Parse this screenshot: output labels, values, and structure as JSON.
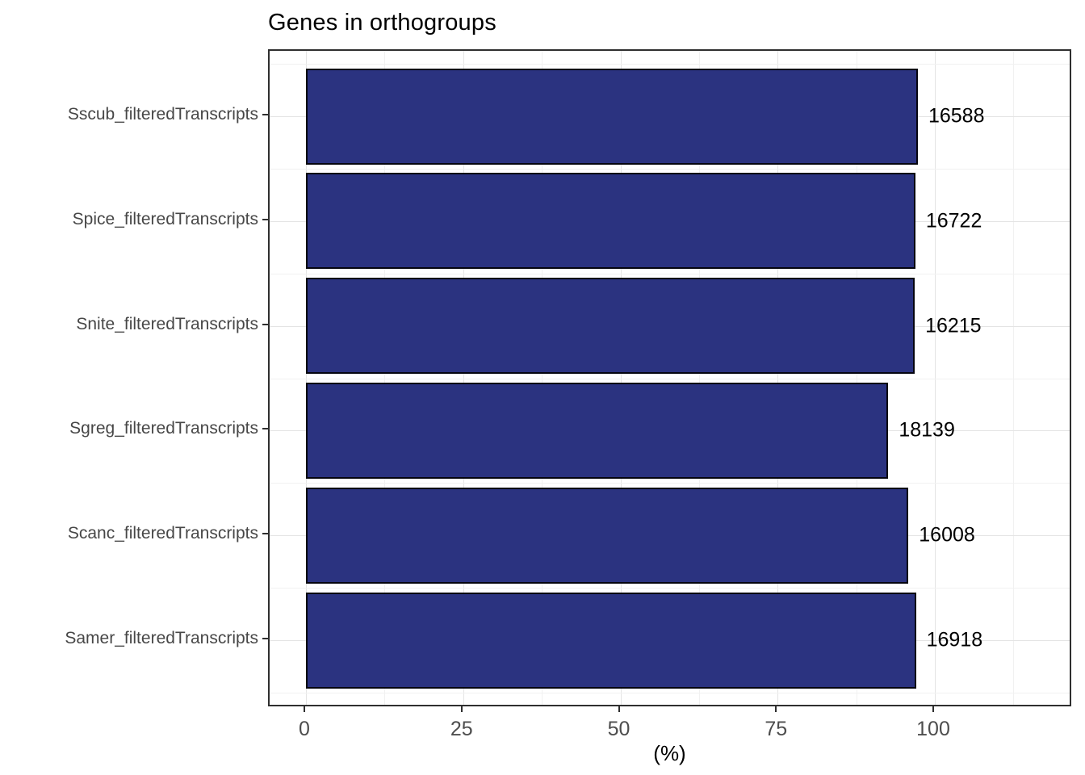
{
  "title": "Genes in orthogroups",
  "chart_data": {
    "type": "bar",
    "orientation": "horizontal",
    "title": "Genes in orthogroups",
    "xlabel": "(%)",
    "ylabel": "",
    "xlim": [
      -5.8,
      122
    ],
    "x_major_ticks": [
      0,
      25,
      50,
      75,
      100
    ],
    "x_minor_ticks": [
      12.5,
      37.5,
      62.5,
      87.5,
      112.5
    ],
    "grid": "major+minor",
    "legend": "none",
    "categories_top_to_bottom": [
      "Sscub_filteredTranscripts",
      "Spice_filteredTranscripts",
      "Snite_filteredTranscripts",
      "Sgreg_filteredTranscripts",
      "Scanc_filteredTranscripts",
      "Samer_filteredTranscripts"
    ],
    "series": [
      {
        "name": "Genes in orthogroups (%)",
        "values": [
          97.3,
          96.9,
          96.8,
          92.6,
          95.8,
          97.0
        ]
      }
    ],
    "bar_labels": [
      "16588",
      "16722",
      "16215",
      "18139",
      "16008",
      "16918"
    ],
    "colors": {
      "bar_fill": "#2B3380",
      "bar_border": "#05050f",
      "panel_border": "#2f2f2f",
      "grid_major": "#e4e4e4",
      "grid_minor": "#f1f1f1",
      "axis_text": "#4d4d4d",
      "label_text": "#000000"
    }
  }
}
